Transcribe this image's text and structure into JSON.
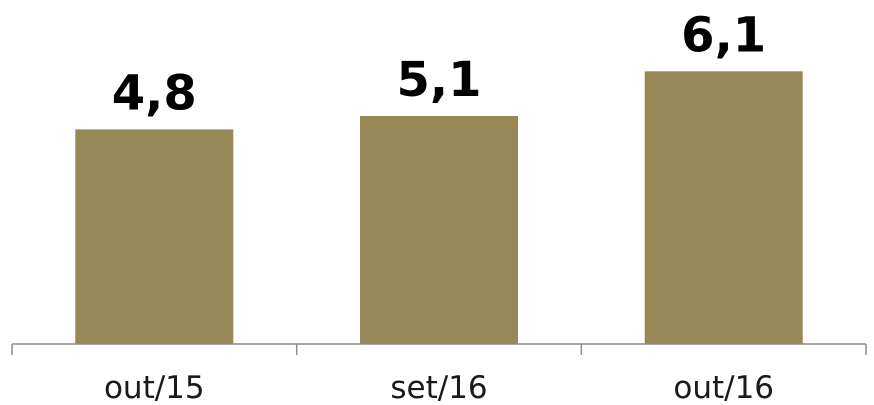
{
  "chart_data": {
    "type": "bar",
    "categories": [
      "out/15",
      "set/16",
      "out/16"
    ],
    "values": [
      4.8,
      5.1,
      6.1
    ],
    "value_labels": [
      "4,8",
      "5,1",
      "6,1"
    ],
    "title": "",
    "xlabel": "",
    "ylabel": "",
    "ylim": [
      0,
      6.8
    ],
    "grid": false,
    "legend": "none",
    "bar_color": "#968957",
    "axis_color": "#8c8c8c"
  }
}
